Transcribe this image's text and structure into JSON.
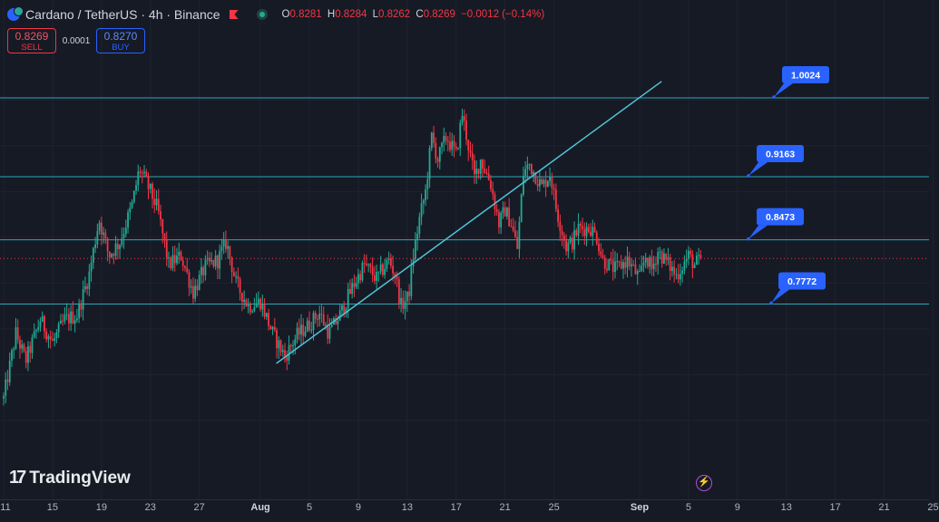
{
  "header": {
    "symbol": "Cardano / TetherUS · 4h · Binance",
    "ohlc": {
      "o_label": "O",
      "o": "0.8281",
      "h_label": "H",
      "h": "0.8284",
      "l_label": "L",
      "l": "0.8262",
      "c_label": "C",
      "c": "0.8269",
      "change": "−0.0012 (−0.14%)"
    }
  },
  "trade": {
    "sell_price": "0.8269",
    "sell_label": "SELL",
    "spread": "0.0001",
    "buy_price": "0.8270",
    "buy_label": "BUY"
  },
  "branding": {
    "logo_mark": "17",
    "name": "TradingView"
  },
  "colors": {
    "up": "#22ab94",
    "down": "#f23645",
    "level": "#2aa8b8",
    "trend": "#4fc3d8",
    "label_bg": "#2962ff",
    "background": "#161a25"
  },
  "chart_data": {
    "type": "candlestick",
    "title": "Cardano / TetherUS · 4h · Binance",
    "ylim": [
      0.63,
      1.05
    ],
    "x_ticks": [
      {
        "label": "11",
        "day": 11
      },
      {
        "label": "15",
        "day": 15
      },
      {
        "label": "19",
        "day": 19
      },
      {
        "label": "23",
        "day": 23
      },
      {
        "label": "27",
        "day": 27
      },
      {
        "label": "Aug",
        "day": 32,
        "bold": true
      },
      {
        "label": "5",
        "day": 36
      },
      {
        "label": "9",
        "day": 40
      },
      {
        "label": "13",
        "day": 44
      },
      {
        "label": "17",
        "day": 48
      },
      {
        "label": "21",
        "day": 52
      },
      {
        "label": "25",
        "day": 56
      },
      {
        "label": "Sep",
        "day": 63,
        "bold": true
      },
      {
        "label": "5",
        "day": 67
      },
      {
        "label": "9",
        "day": 71
      },
      {
        "label": "13",
        "day": 75
      },
      {
        "label": "17",
        "day": 79
      },
      {
        "label": "21",
        "day": 83
      },
      {
        "label": "25",
        "day": 87
      }
    ],
    "levels": [
      {
        "value": 1.0024,
        "label": "1.0024"
      },
      {
        "value": 0.9163,
        "label": "0.9163"
      },
      {
        "value": 0.8473,
        "label": "0.8473"
      },
      {
        "value": 0.7772,
        "label": "0.7772"
      }
    ],
    "last_price": 0.8269,
    "trendline": [
      {
        "day": 33.3,
        "value": 0.7123
      },
      {
        "day": 64.8,
        "value": 1.0204
      }
    ],
    "candle_path": [
      [
        11.0,
        0.674
      ],
      [
        12.0,
        0.745
      ],
      [
        12.8,
        0.715
      ],
      [
        14.0,
        0.76
      ],
      [
        15.0,
        0.735
      ],
      [
        16.0,
        0.76
      ],
      [
        17.0,
        0.765
      ],
      [
        18.0,
        0.81
      ],
      [
        18.8,
        0.87
      ],
      [
        19.6,
        0.83
      ],
      [
        20.5,
        0.845
      ],
      [
        21.5,
        0.885
      ],
      [
        22.1,
        0.925
      ],
      [
        23.0,
        0.9
      ],
      [
        23.6,
        0.88
      ],
      [
        24.5,
        0.82
      ],
      [
        25.5,
        0.83
      ],
      [
        26.5,
        0.79
      ],
      [
        27.5,
        0.818
      ],
      [
        28.5,
        0.825
      ],
      [
        29.2,
        0.845
      ],
      [
        30.0,
        0.8
      ],
      [
        31.0,
        0.775
      ],
      [
        32.0,
        0.78
      ],
      [
        33.0,
        0.745
      ],
      [
        34.0,
        0.72
      ],
      [
        35.0,
        0.743
      ],
      [
        36.0,
        0.755
      ],
      [
        36.8,
        0.768
      ],
      [
        37.6,
        0.745
      ],
      [
        38.5,
        0.765
      ],
      [
        39.5,
        0.795
      ],
      [
        40.5,
        0.82
      ],
      [
        41.5,
        0.805
      ],
      [
        42.5,
        0.825
      ],
      [
        43.0,
        0.81
      ],
      [
        43.5,
        0.775
      ],
      [
        44.1,
        0.785
      ],
      [
        44.5,
        0.83
      ],
      [
        45.0,
        0.87
      ],
      [
        45.5,
        0.9
      ],
      [
        46.0,
        0.96
      ],
      [
        46.5,
        0.935
      ],
      [
        47.2,
        0.96
      ],
      [
        48.0,
        0.94
      ],
      [
        48.5,
        0.985
      ],
      [
        49.0,
        0.95
      ],
      [
        49.5,
        0.915
      ],
      [
        50.0,
        0.935
      ],
      [
        50.8,
        0.91
      ],
      [
        51.5,
        0.865
      ],
      [
        52.0,
        0.88
      ],
      [
        52.5,
        0.865
      ],
      [
        53.0,
        0.838
      ],
      [
        53.5,
        0.92
      ],
      [
        54.0,
        0.93
      ],
      [
        55.0,
        0.905
      ],
      [
        55.7,
        0.92
      ],
      [
        56.2,
        0.88
      ],
      [
        57.0,
        0.84
      ],
      [
        57.5,
        0.845
      ],
      [
        58.0,
        0.86
      ],
      [
        59.0,
        0.86
      ],
      [
        59.5,
        0.85
      ],
      [
        60.0,
        0.825
      ],
      [
        61.0,
        0.815
      ],
      [
        62.0,
        0.825
      ],
      [
        63.0,
        0.805
      ],
      [
        63.5,
        0.83
      ],
      [
        64.0,
        0.815
      ],
      [
        64.5,
        0.835
      ],
      [
        65.5,
        0.818
      ],
      [
        66.0,
        0.808
      ],
      [
        67.0,
        0.83
      ],
      [
        67.5,
        0.82
      ],
      [
        68.0,
        0.8269
      ]
    ]
  }
}
